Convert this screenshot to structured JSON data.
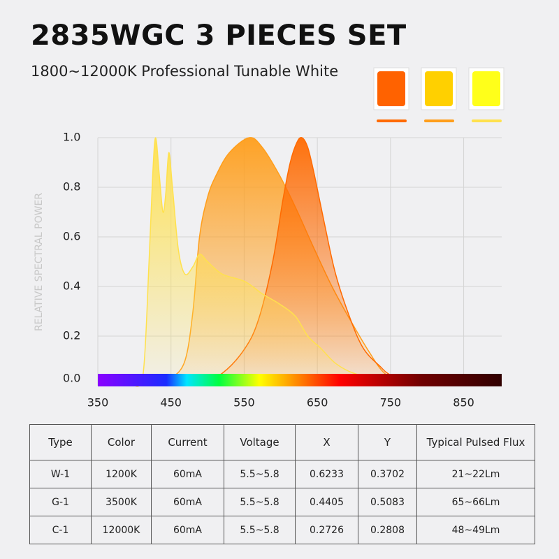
{
  "header": {
    "title": "2835WGC 3 PIECES SET",
    "subtitle": "1800~12000K Professional Tunable White"
  },
  "chart_data": {
    "type": "area",
    "y_label": "RELATIVE SPECTRAL POWER",
    "xlim": [
      350,
      902
    ],
    "xticks": [
      350,
      450,
      550,
      650,
      750,
      850
    ],
    "ylim": [
      0,
      1.0
    ],
    "yticks": [
      {
        "value": 0,
        "label": "0.0"
      },
      0.2,
      0.4,
      0.6,
      0.8,
      {
        "value": 1,
        "label": "1.0"
      }
    ],
    "grid": true,
    "series": [
      {
        "color": "#ff9e1b",
        "x": [
          426,
          450,
          469,
          480,
          489,
          500,
          512,
          530,
          557,
          575,
          598,
          620,
          646,
          670,
          694,
          720,
          742,
          771
        ],
        "values": [
          0,
          0.03,
          0.1,
          0.3,
          0.6,
          0.76,
          0.85,
          0.94,
          1.0,
          0.96,
          0.85,
          0.72,
          0.55,
          0.4,
          0.27,
          0.14,
          0.05,
          0
        ]
      },
      {
        "color": "#ff6a00",
        "x": [
          484,
          520,
          551,
          570,
          589,
          603,
          613,
          622,
          629,
          637,
          646,
          660,
          675,
          695,
          713,
          735,
          752,
          790
        ],
        "values": [
          0,
          0.05,
          0.15,
          0.27,
          0.5,
          0.75,
          0.9,
          0.98,
          1.0,
          0.96,
          0.85,
          0.65,
          0.45,
          0.27,
          0.15,
          0.08,
          0.04,
          0
        ]
      },
      {
        "color": "#ffe14d",
        "x": [
          398,
          412,
          420,
          425,
          429,
          434,
          439,
          443,
          447,
          452,
          460,
          469,
          480,
          489,
          500,
          520,
          551,
          575,
          598,
          620,
          637,
          655,
          675,
          700,
          732,
          780
        ],
        "values": [
          0,
          0.05,
          0.5,
          0.85,
          1.0,
          0.85,
          0.7,
          0.78,
          0.94,
          0.8,
          0.55,
          0.45,
          0.48,
          0.53,
          0.5,
          0.45,
          0.42,
          0.37,
          0.33,
          0.28,
          0.2,
          0.15,
          0.09,
          0.05,
          0.03,
          0
        ]
      }
    ]
  },
  "table": {
    "header": [
      "Type",
      "Color",
      "Current",
      "Voltage",
      "X",
      "Y",
      "Typical Pulsed Flux"
    ],
    "rows": [
      [
        "W-1",
        "1200K",
        "60mA",
        "5.5~5.8",
        "0.6233",
        "0.3702",
        "21~22Lm"
      ],
      [
        "G-1",
        "3500K",
        "60mA",
        "5.5~5.8",
        "0.4405",
        "0.5083",
        "65~66Lm"
      ],
      [
        "C-1",
        "12000K",
        "60mA",
        "5.5~5.8",
        "0.2726",
        "0.2808",
        "48~49Lm"
      ]
    ]
  }
}
